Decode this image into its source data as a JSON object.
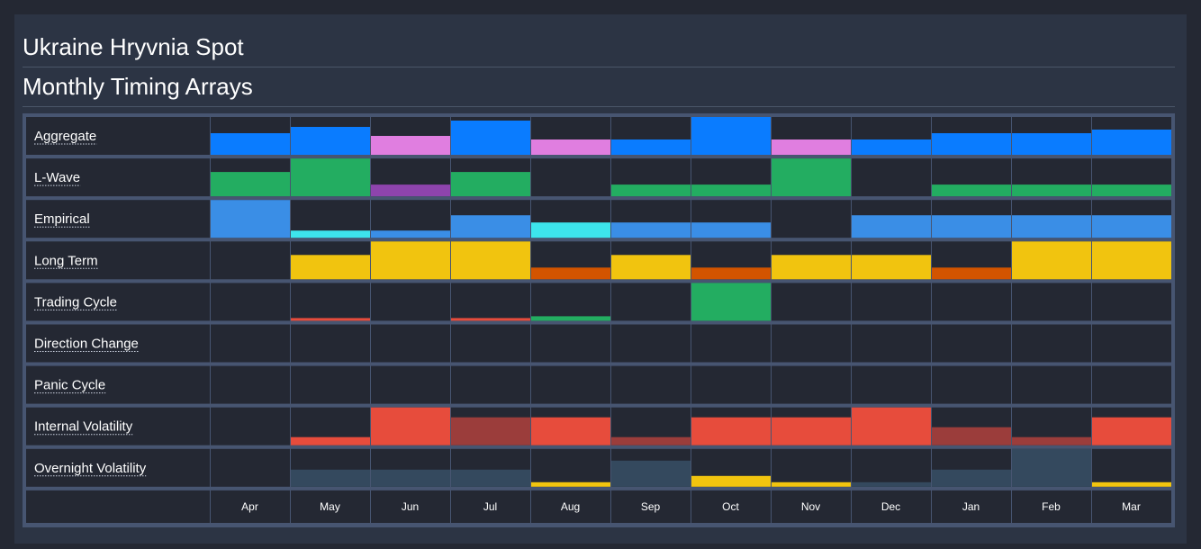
{
  "header": {
    "title": "Ukraine Hryvnia Spot",
    "subtitle": "Monthly Timing Arrays"
  },
  "colors": {
    "page_background": "#242833",
    "panel_background": "#2c3444",
    "cell_background": "#242833",
    "grid_frame": "#475571",
    "blue": "#0a7cff",
    "pink": "#e07ee0",
    "green": "#23ad61",
    "purple": "#8e44ad",
    "light_blue": "#3a8ee6",
    "cyan": "#3de4ec",
    "yellow": "#f1c40f",
    "orange": "#d35400",
    "red": "#e74c3c",
    "dark_red": "#9b3d3b",
    "slate": "#34495e"
  },
  "chart_data": {
    "type": "heatmap",
    "title": "Monthly Timing Arrays",
    "categories": [
      "Apr",
      "May",
      "Jun",
      "Jul",
      "Aug",
      "Sep",
      "Oct",
      "Nov",
      "Dec",
      "Jan",
      "Feb",
      "Mar"
    ],
    "value_scale": "fraction of row height (0-1)",
    "grid": true,
    "series": [
      {
        "name": "Aggregate",
        "values": [
          0.57,
          0.74,
          0.5,
          0.9,
          0.4,
          0.4,
          1.0,
          0.4,
          0.4,
          0.57,
          0.57,
          0.67
        ],
        "colors": [
          "blue",
          "blue",
          "pink",
          "blue",
          "pink",
          "blue",
          "blue",
          "pink",
          "blue",
          "blue",
          "blue",
          "blue"
        ]
      },
      {
        "name": "L-Wave",
        "values": [
          0.65,
          1.0,
          0.3,
          0.65,
          0,
          0.3,
          0.3,
          1.0,
          0,
          0.3,
          0.3,
          0.3
        ],
        "colors": [
          "green",
          "green",
          "purple",
          "green",
          "none",
          "green",
          "green",
          "green",
          "none",
          "green",
          "green",
          "green"
        ]
      },
      {
        "name": "Empirical",
        "values": [
          1.0,
          0.2,
          0.2,
          0.6,
          0.4,
          0.4,
          0.4,
          0,
          0.6,
          0.6,
          0.6,
          0.6
        ],
        "colors": [
          "light_blue",
          "cyan",
          "light_blue",
          "light_blue",
          "cyan",
          "light_blue",
          "light_blue",
          "none",
          "light_blue",
          "light_blue",
          "light_blue",
          "light_blue"
        ]
      },
      {
        "name": "Long Term",
        "values": [
          0,
          0.65,
          1.0,
          1.0,
          0.3,
          0.65,
          0.3,
          0.65,
          0.65,
          0.3,
          1.0,
          1.0
        ],
        "colors": [
          "none",
          "yellow",
          "yellow",
          "yellow",
          "orange",
          "yellow",
          "orange",
          "yellow",
          "yellow",
          "orange",
          "yellow",
          "yellow"
        ]
      },
      {
        "name": "Trading Cycle",
        "values": [
          0,
          0.08,
          0,
          0.08,
          0.12,
          0,
          1.0,
          0,
          0,
          0,
          0,
          0
        ],
        "colors": [
          "none",
          "red",
          "none",
          "red",
          "green",
          "none",
          "green",
          "none",
          "none",
          "none",
          "none",
          "none"
        ]
      },
      {
        "name": "Direction Change",
        "values": [
          0,
          0,
          0,
          0,
          0,
          0,
          0,
          0,
          0,
          0,
          0,
          0
        ],
        "colors": [
          "none",
          "none",
          "none",
          "none",
          "none",
          "none",
          "none",
          "none",
          "none",
          "none",
          "none",
          "none"
        ]
      },
      {
        "name": "Panic Cycle",
        "values": [
          0,
          0,
          0,
          0,
          0,
          0,
          0,
          0,
          0,
          0,
          0,
          0
        ],
        "colors": [
          "none",
          "none",
          "none",
          "none",
          "none",
          "none",
          "none",
          "none",
          "none",
          "none",
          "none",
          "none"
        ]
      },
      {
        "name": "Internal Volatility",
        "values": [
          0,
          0.22,
          1.0,
          0.74,
          0.74,
          0.22,
          0.74,
          0.74,
          1.0,
          0.48,
          0.22,
          0.74
        ],
        "colors": [
          "none",
          "red",
          "red",
          "dark_red",
          "red",
          "dark_red",
          "red",
          "red",
          "red",
          "dark_red",
          "dark_red",
          "red"
        ]
      },
      {
        "name": "Overnight Volatility",
        "values": [
          0,
          0.45,
          0.45,
          0.45,
          0.13,
          0.7,
          0.28,
          0.13,
          0.13,
          0.45,
          1.0,
          0.13
        ],
        "colors": [
          "none",
          "slate",
          "slate",
          "slate",
          "yellow",
          "slate",
          "yellow",
          "yellow",
          "slate",
          "slate",
          "slate",
          "yellow"
        ]
      }
    ]
  }
}
